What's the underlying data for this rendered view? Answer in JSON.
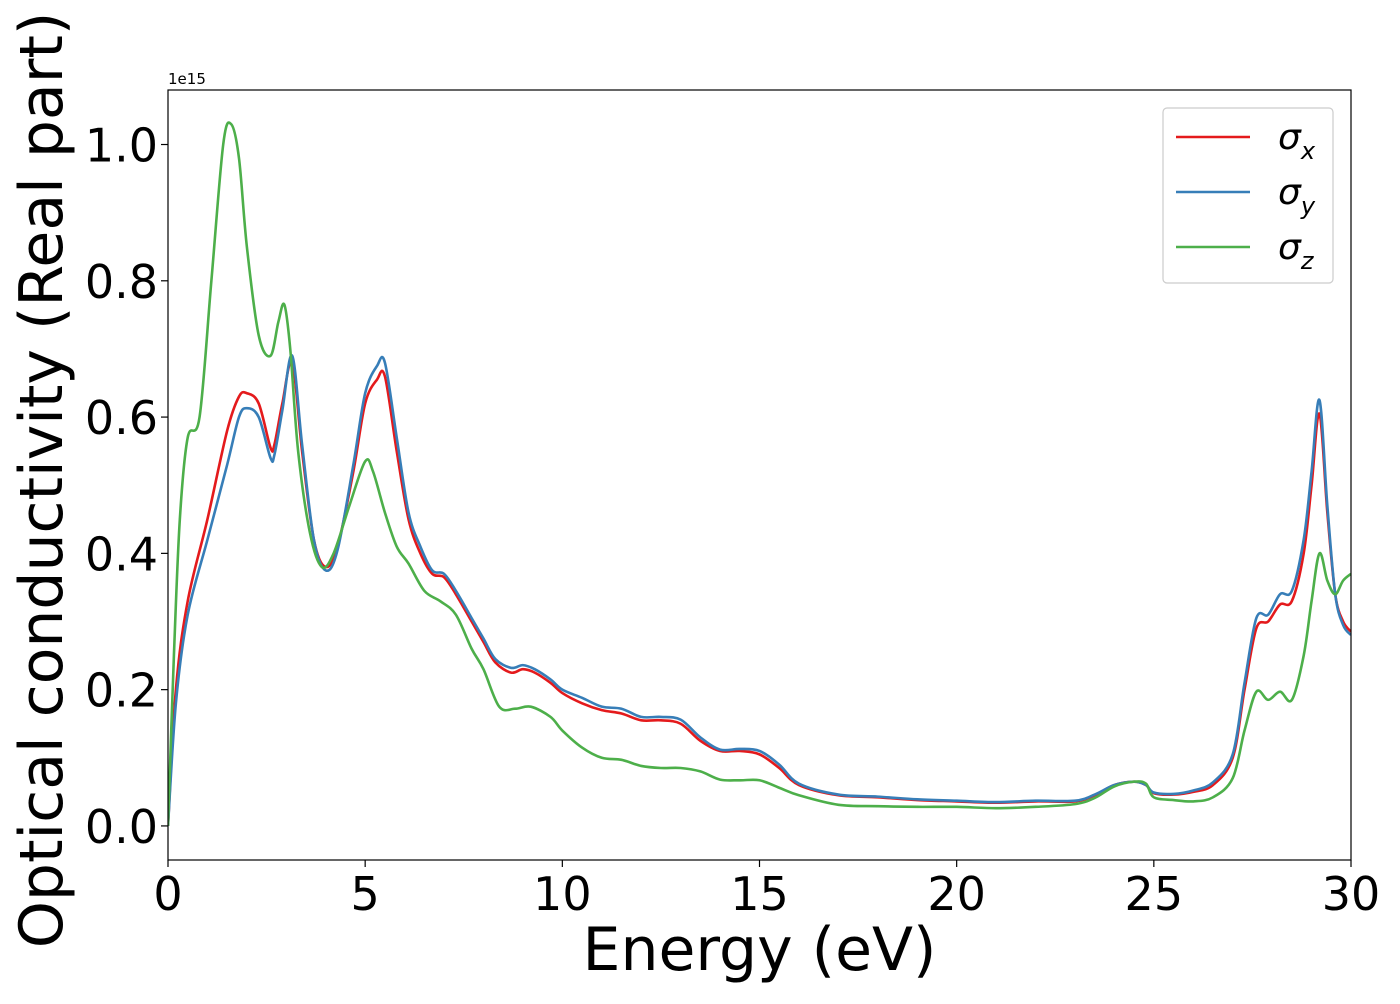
{
  "chart_data": {
    "type": "line",
    "xlabel": "Energy (eV)",
    "ylabel": "Optical conductivity (Real part)",
    "y_offset_text": "1e15",
    "xlim": [
      0,
      30
    ],
    "ylim": [
      -0.05,
      1.08
    ],
    "x_ticks": [
      0,
      5,
      10,
      15,
      20,
      25,
      30
    ],
    "y_ticks": [
      0.0,
      0.2,
      0.4,
      0.6,
      0.8,
      1.0
    ],
    "grid": false,
    "legend_position": "top-right",
    "series": [
      {
        "name": "σx",
        "symbol": "σ",
        "subscript": "x",
        "color": "#e41a1c",
        "x": [
          0,
          0.2,
          0.5,
          1.0,
          1.5,
          1.8,
          2.0,
          2.3,
          2.6,
          2.7,
          2.9,
          3.15,
          3.4,
          3.7,
          4.0,
          4.3,
          4.7,
          5.0,
          5.3,
          5.5,
          5.8,
          6.1,
          6.4,
          6.7,
          7.0,
          7.3,
          7.7,
          8.0,
          8.3,
          8.7,
          9.0,
          9.3,
          9.7,
          10.0,
          10.5,
          11.0,
          11.5,
          12.0,
          12.5,
          13.0,
          13.5,
          14.0,
          14.5,
          15.0,
          15.5,
          16.0,
          17.0,
          18.0,
          19.0,
          20.0,
          21.0,
          22.0,
          23.0,
          23.5,
          24.0,
          24.5,
          24.8,
          25.0,
          25.5,
          26.0,
          26.5,
          27.0,
          27.3,
          27.6,
          27.9,
          28.2,
          28.5,
          28.8,
          29.0,
          29.2,
          29.4,
          29.6,
          29.8,
          30.0
        ],
        "y": [
          0.0,
          0.2,
          0.33,
          0.45,
          0.58,
          0.63,
          0.635,
          0.62,
          0.555,
          0.56,
          0.62,
          0.68,
          0.55,
          0.42,
          0.38,
          0.41,
          0.52,
          0.62,
          0.655,
          0.66,
          0.55,
          0.45,
          0.4,
          0.37,
          0.365,
          0.34,
          0.3,
          0.27,
          0.24,
          0.225,
          0.23,
          0.225,
          0.21,
          0.195,
          0.18,
          0.17,
          0.165,
          0.155,
          0.155,
          0.15,
          0.125,
          0.11,
          0.11,
          0.105,
          0.085,
          0.06,
          0.045,
          0.042,
          0.038,
          0.036,
          0.034,
          0.036,
          0.036,
          0.045,
          0.06,
          0.065,
          0.06,
          0.048,
          0.046,
          0.05,
          0.06,
          0.1,
          0.2,
          0.29,
          0.3,
          0.325,
          0.33,
          0.4,
          0.5,
          0.605,
          0.46,
          0.34,
          0.3,
          0.285
        ]
      },
      {
        "name": "σy",
        "symbol": "σ",
        "subscript": "y",
        "color": "#377eb8",
        "x": [
          0,
          0.2,
          0.5,
          1.0,
          1.5,
          1.8,
          2.0,
          2.3,
          2.6,
          2.7,
          2.9,
          3.15,
          3.4,
          3.7,
          4.0,
          4.3,
          4.7,
          5.0,
          5.3,
          5.5,
          5.8,
          6.1,
          6.4,
          6.7,
          7.0,
          7.3,
          7.7,
          8.0,
          8.3,
          8.7,
          9.0,
          9.3,
          9.7,
          10.0,
          10.5,
          11.0,
          11.5,
          12.0,
          12.5,
          13.0,
          13.5,
          14.0,
          14.5,
          15.0,
          15.5,
          16.0,
          17.0,
          18.0,
          19.0,
          20.0,
          21.0,
          22.0,
          23.0,
          23.5,
          24.0,
          24.5,
          24.8,
          25.0,
          25.5,
          26.0,
          26.5,
          27.0,
          27.3,
          27.6,
          27.9,
          28.2,
          28.5,
          28.8,
          29.0,
          29.2,
          29.4,
          29.6,
          29.8,
          30.0
        ],
        "y": [
          0.0,
          0.18,
          0.31,
          0.42,
          0.53,
          0.6,
          0.613,
          0.6,
          0.54,
          0.545,
          0.61,
          0.69,
          0.56,
          0.42,
          0.375,
          0.405,
          0.53,
          0.635,
          0.675,
          0.68,
          0.57,
          0.46,
          0.41,
          0.375,
          0.37,
          0.345,
          0.305,
          0.275,
          0.245,
          0.232,
          0.236,
          0.23,
          0.215,
          0.2,
          0.188,
          0.175,
          0.172,
          0.16,
          0.16,
          0.156,
          0.13,
          0.112,
          0.113,
          0.11,
          0.09,
          0.062,
          0.046,
          0.043,
          0.039,
          0.037,
          0.035,
          0.037,
          0.037,
          0.046,
          0.06,
          0.065,
          0.06,
          0.049,
          0.047,
          0.052,
          0.064,
          0.105,
          0.21,
          0.305,
          0.31,
          0.34,
          0.345,
          0.42,
          0.52,
          0.625,
          0.47,
          0.34,
          0.295,
          0.28
        ]
      },
      {
        "name": "σz",
        "symbol": "σ",
        "subscript": "z",
        "color": "#4daf4a",
        "x": [
          0,
          0.15,
          0.3,
          0.5,
          0.8,
          1.1,
          1.4,
          1.6,
          1.8,
          2.0,
          2.3,
          2.6,
          2.8,
          2.95,
          3.1,
          3.3,
          3.6,
          3.9,
          4.2,
          4.6,
          5.0,
          5.2,
          5.5,
          5.8,
          6.1,
          6.5,
          6.9,
          7.3,
          7.7,
          8.0,
          8.4,
          8.8,
          9.2,
          9.7,
          10.0,
          10.5,
          11.0,
          11.5,
          12.0,
          12.5,
          13.0,
          13.5,
          14.0,
          14.5,
          15.0,
          15.5,
          16.0,
          17.0,
          18.0,
          19.0,
          20.0,
          21.0,
          22.0,
          23.0,
          23.5,
          24.0,
          24.5,
          24.8,
          25.0,
          25.5,
          26.0,
          26.5,
          27.0,
          27.3,
          27.6,
          27.9,
          28.2,
          28.5,
          28.8,
          29.0,
          29.2,
          29.4,
          29.6,
          29.8,
          30.0
        ],
        "y": [
          0.0,
          0.25,
          0.45,
          0.57,
          0.6,
          0.8,
          1.0,
          1.03,
          0.98,
          0.85,
          0.72,
          0.69,
          0.74,
          0.765,
          0.7,
          0.55,
          0.43,
          0.38,
          0.4,
          0.47,
          0.535,
          0.52,
          0.46,
          0.41,
          0.385,
          0.345,
          0.33,
          0.31,
          0.26,
          0.23,
          0.175,
          0.172,
          0.175,
          0.16,
          0.14,
          0.115,
          0.1,
          0.097,
          0.088,
          0.085,
          0.085,
          0.08,
          0.068,
          0.067,
          0.067,
          0.056,
          0.045,
          0.031,
          0.029,
          0.028,
          0.028,
          0.026,
          0.028,
          0.032,
          0.041,
          0.058,
          0.065,
          0.062,
          0.042,
          0.038,
          0.036,
          0.042,
          0.07,
          0.14,
          0.197,
          0.185,
          0.197,
          0.185,
          0.25,
          0.33,
          0.4,
          0.36,
          0.34,
          0.36,
          0.37
        ]
      }
    ]
  }
}
